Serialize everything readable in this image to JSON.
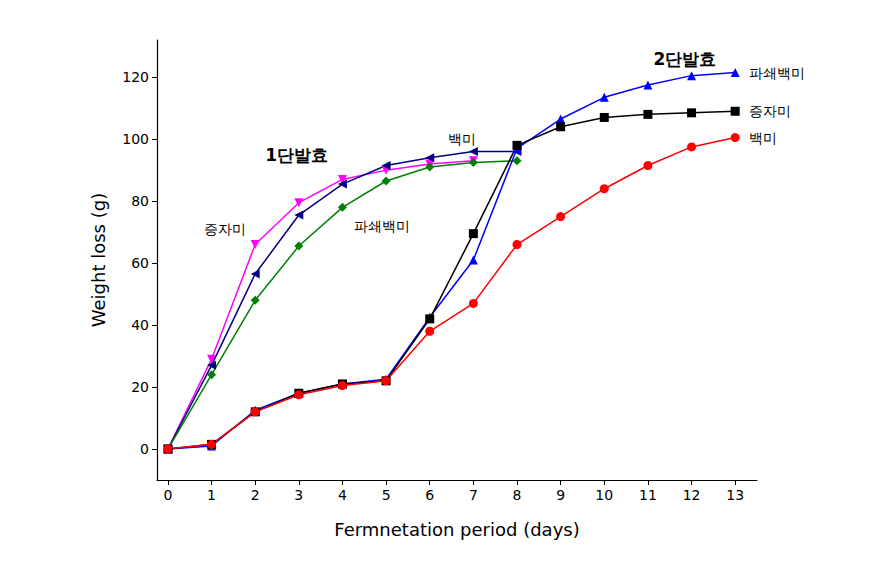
{
  "chart_data": {
    "type": "line",
    "x_label": "Fermnetation period (days)",
    "y_label": "Weight loss (g)",
    "xlim": [
      -0.25,
      13.5
    ],
    "xticks": [
      0,
      1,
      2,
      3,
      4,
      5,
      6,
      7,
      8,
      9,
      10,
      11,
      12,
      13
    ],
    "ylim": [
      -10,
      132
    ],
    "yticks": [
      0,
      20,
      40,
      60,
      80,
      100,
      120
    ],
    "grid": false,
    "annotations": [
      {
        "text": "1단발효",
        "x": 2.95,
        "y": 95
      },
      {
        "text": "2단발효",
        "x": 11.85,
        "y": 126
      }
    ],
    "series": [
      {
        "name": "증자미",
        "color": "#ff00ff",
        "marker": "triangle-down",
        "annotation": [
          1.3,
          71
        ],
        "x": [
          0,
          1,
          2,
          3,
          4,
          5,
          6,
          7
        ],
        "values": [
          0,
          29,
          66,
          79.5,
          87,
          90,
          92,
          93
        ]
      },
      {
        "name": "백미",
        "color": "#000080",
        "marker": "triangle-left",
        "annotation": [
          6.75,
          100
        ],
        "x": [
          0,
          1,
          2,
          3,
          4,
          5,
          6,
          7,
          8
        ],
        "values": [
          0,
          27,
          56.5,
          75.5,
          85.5,
          91.5,
          94,
          96,
          96
        ]
      },
      {
        "name": "파쇄백미",
        "color": "#008000",
        "marker": "diamond",
        "annotation": [
          4.9,
          72
        ],
        "x": [
          0,
          1,
          2,
          3,
          4,
          5,
          6,
          7,
          8
        ],
        "values": [
          0,
          24,
          48,
          65.5,
          78,
          86.5,
          91,
          92.5,
          93
        ]
      },
      {
        "name": "파쇄백미",
        "color": "#0000ff",
        "marker": "triangle",
        "x": [
          0,
          1,
          2,
          3,
          4,
          5,
          6,
          7,
          8,
          9,
          10,
          11,
          12,
          13
        ],
        "values": [
          0,
          1,
          12.5,
          18,
          21,
          22.5,
          42.5,
          61,
          97,
          106.5,
          113.5,
          117.5,
          120.5,
          121.5
        ]
      },
      {
        "name": "증자미",
        "color": "#000000",
        "marker": "square",
        "x": [
          0,
          1,
          2,
          3,
          4,
          5,
          6,
          7,
          8,
          9,
          10,
          11,
          12,
          13
        ],
        "values": [
          0,
          1.5,
          12,
          18,
          21,
          22,
          42,
          69.5,
          98,
          104,
          107,
          108,
          108.5,
          109
        ]
      },
      {
        "name": "백미",
        "color": "#ff0000",
        "marker": "circle",
        "x": [
          0,
          1,
          2,
          3,
          4,
          5,
          6,
          7,
          8,
          9,
          10,
          11,
          12,
          13
        ],
        "values": [
          0,
          1.5,
          12,
          17.5,
          20.5,
          22,
          38,
          47,
          66,
          75,
          84,
          91.5,
          97.5,
          100.5
        ]
      }
    ]
  }
}
